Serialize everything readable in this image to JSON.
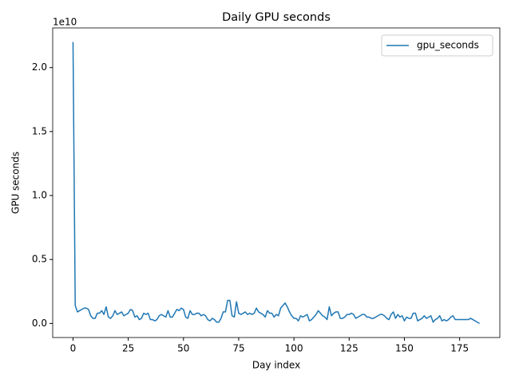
{
  "chart_data": {
    "type": "line",
    "title": "Daily GPU seconds",
    "x_label": "Day index",
    "y_label": "GPU seconds",
    "y_offset_label": "1e10",
    "x": [
      0,
      1,
      2,
      3,
      4,
      5,
      6,
      7,
      8,
      9,
      10,
      11,
      12,
      13,
      14,
      15,
      16,
      17,
      18,
      19,
      20,
      21,
      22,
      23,
      24,
      25,
      26,
      27,
      28,
      29,
      30,
      31,
      32,
      33,
      34,
      35,
      36,
      37,
      38,
      39,
      40,
      41,
      42,
      43,
      44,
      45,
      46,
      47,
      48,
      49,
      50,
      51,
      52,
      53,
      54,
      55,
      56,
      57,
      58,
      59,
      60,
      61,
      62,
      63,
      64,
      65,
      66,
      67,
      68,
      69,
      70,
      71,
      72,
      73,
      74,
      75,
      76,
      77,
      78,
      79,
      80,
      81,
      82,
      83,
      84,
      85,
      86,
      87,
      88,
      89,
      90,
      91,
      92,
      93,
      94,
      95,
      96,
      97,
      98,
      99,
      100,
      101,
      102,
      103,
      104,
      105,
      106,
      107,
      108,
      109,
      110,
      111,
      112,
      113,
      114,
      115,
      116,
      117,
      118,
      119,
      120,
      121,
      122,
      123,
      124,
      125,
      126,
      127,
      128,
      129,
      130,
      131,
      132,
      133,
      134,
      135,
      136,
      137,
      138,
      139,
      140,
      141,
      142,
      143,
      144,
      145,
      146,
      147,
      148,
      149,
      150,
      151,
      152,
      153,
      154,
      155,
      156,
      157,
      158,
      159,
      160,
      161,
      162,
      163,
      164,
      165,
      166,
      167,
      168,
      169,
      170,
      171,
      172,
      173,
      174,
      175,
      176,
      177,
      178,
      179,
      180,
      181,
      182,
      183,
      184
    ],
    "series": [
      {
        "name": "gpu_seconds",
        "color": "#1f77b4",
        "values": [
          2.2,
          0.14,
          0.09,
          0.1,
          0.11,
          0.12,
          0.12,
          0.11,
          0.06,
          0.04,
          0.04,
          0.08,
          0.08,
          0.1,
          0.07,
          0.13,
          0.05,
          0.04,
          0.06,
          0.1,
          0.07,
          0.08,
          0.09,
          0.06,
          0.07,
          0.08,
          0.11,
          0.1,
          0.05,
          0.06,
          0.03,
          0.04,
          0.08,
          0.07,
          0.08,
          0.03,
          0.03,
          0.02,
          0.03,
          0.06,
          0.07,
          0.06,
          0.05,
          0.1,
          0.05,
          0.05,
          0.08,
          0.11,
          0.1,
          0.12,
          0.11,
          0.05,
          0.04,
          0.1,
          0.07,
          0.07,
          0.08,
          0.08,
          0.06,
          0.07,
          0.06,
          0.03,
          0.02,
          0.04,
          0.03,
          0.01,
          0.01,
          0.04,
          0.09,
          0.09,
          0.18,
          0.18,
          0.06,
          0.05,
          0.17,
          0.08,
          0.07,
          0.08,
          0.09,
          0.07,
          0.08,
          0.07,
          0.08,
          0.12,
          0.09,
          0.08,
          0.07,
          0.05,
          0.1,
          0.08,
          0.08,
          0.05,
          0.07,
          0.06,
          0.12,
          0.14,
          0.16,
          0.13,
          0.09,
          0.06,
          0.04,
          0.04,
          0.02,
          0.06,
          0.05,
          0.06,
          0.07,
          0.02,
          0.03,
          0.05,
          0.07,
          0.1,
          0.08,
          0.06,
          0.05,
          0.03,
          0.13,
          0.06,
          0.08,
          0.09,
          0.09,
          0.04,
          0.04,
          0.05,
          0.07,
          0.07,
          0.08,
          0.07,
          0.04,
          0.05,
          0.06,
          0.07,
          0.07,
          0.05,
          0.05,
          0.04,
          0.04,
          0.05,
          0.06,
          0.07,
          0.07,
          0.06,
          0.04,
          0.03,
          0.07,
          0.09,
          0.04,
          0.07,
          0.05,
          0.06,
          0.02,
          0.05,
          0.04,
          0.04,
          0.08,
          0.08,
          0.02,
          0.03,
          0.04,
          0.06,
          0.04,
          0.05,
          0.06,
          0.01,
          0.03,
          0.04,
          0.06,
          0.02,
          0.03,
          0.02,
          0.03,
          0.05,
          0.06,
          0.03,
          0.03,
          0.03,
          0.03,
          0.03,
          0.03,
          0.03,
          0.04,
          0.03,
          0.02,
          0.01,
          0.0
        ]
      }
    ],
    "xlim": [
      -9.2,
      193.2
    ],
    "xticks": [
      0,
      25,
      50,
      75,
      100,
      125,
      150,
      175
    ],
    "ylim": [
      -0.11,
      2.31
    ],
    "yticks": [
      {
        "value": 0,
        "label": "0.0"
      },
      0.5,
      {
        "value": 1,
        "label": "1.0"
      },
      1.5,
      {
        "value": 2,
        "label": "2.0"
      }
    ],
    "grid": false,
    "legend": "upper right"
  }
}
